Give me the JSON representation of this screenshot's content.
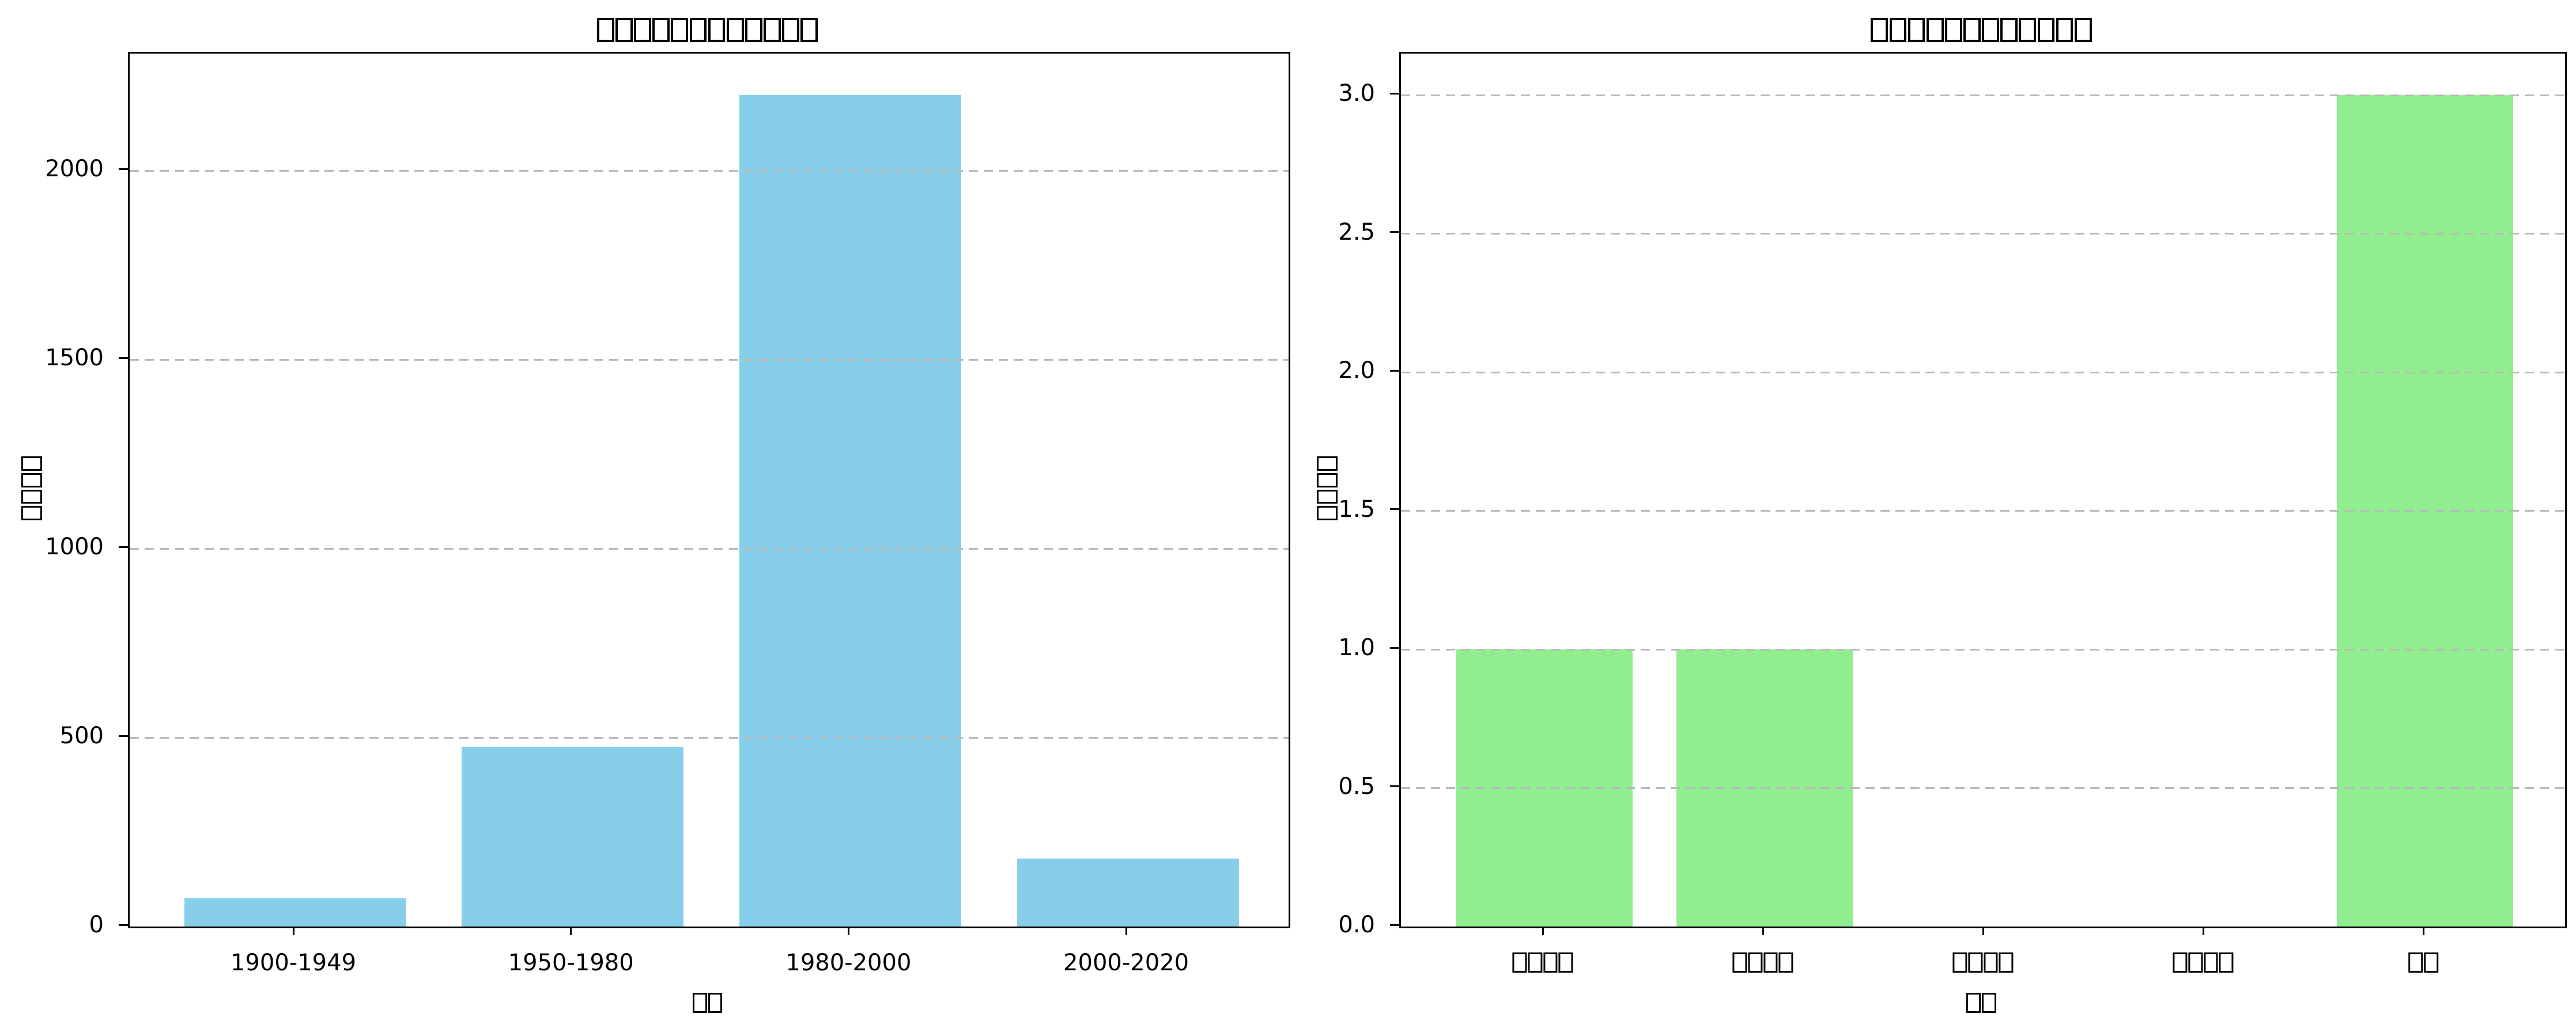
{
  "figure": {
    "background": "#ffffff",
    "axis_color": "#000000",
    "missing_glyph_character": "□",
    "note": "CJK text in titles/labels is rendered as missing-glyph tofu boxes in the screenshot"
  },
  "chart_data": [
    {
      "type": "bar",
      "title": "□□□□□□□□□□□□",
      "xlabel": "□□",
      "ylabel": "□□□□",
      "categories": [
        "1900-1949",
        "1950-1980",
        "1980-2000",
        "2000-2020"
      ],
      "values": [
        75,
        475,
        2200,
        180
      ],
      "bar_color": "#87ceeb",
      "ylim": [
        0,
        2310
      ],
      "ytick_values": [
        0,
        500,
        1000,
        1500,
        2000
      ],
      "ytick_labels": [
        "0",
        "500",
        "1000",
        "1500",
        "2000"
      ],
      "grid": {
        "axis": "y",
        "style": "dashed",
        "color": "#b9b9b9"
      },
      "legend": "none"
    },
    {
      "type": "bar",
      "title": "□□□□□□□□□□□□",
      "xlabel": "□□",
      "ylabel": "□□□□",
      "categories": [
        "□□□□",
        "□□□□",
        "□□□□",
        "□□□□",
        "□□"
      ],
      "values": [
        1,
        1,
        0,
        0,
        3
      ],
      "bar_color": "#90ee90",
      "ylim": [
        0,
        3.15
      ],
      "ytick_values": [
        0,
        0.5,
        1.0,
        1.5,
        2.0,
        2.5,
        3.0
      ],
      "ytick_labels": [
        "0.0",
        "0.5",
        "1.0",
        "1.5",
        "2.0",
        "2.5",
        "3.0"
      ],
      "grid": {
        "axis": "y",
        "style": "dashed",
        "color": "#b9b9b9"
      },
      "legend": "none"
    }
  ]
}
